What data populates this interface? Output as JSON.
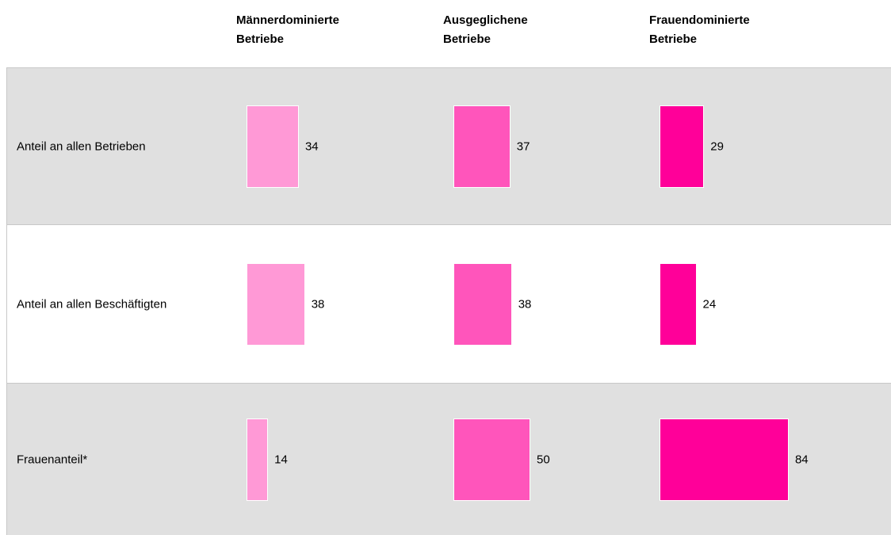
{
  "chart_data": {
    "type": "bar",
    "categories": [
      "Männerdominierte Betriebe",
      "Ausgeglichene Betriebe",
      "Frauendominierte Betriebe"
    ],
    "colors": [
      "#ff99d6",
      "#ff55bb",
      "#ff0099"
    ],
    "series": [
      {
        "name": "Anteil an allen Betrieben",
        "values": [
          34,
          37,
          29
        ]
      },
      {
        "name": "Anteil an allen Beschäftigten",
        "values": [
          38,
          38,
          24
        ]
      },
      {
        "name": "Frauenanteil*",
        "values": [
          14,
          50,
          84
        ]
      }
    ]
  }
}
